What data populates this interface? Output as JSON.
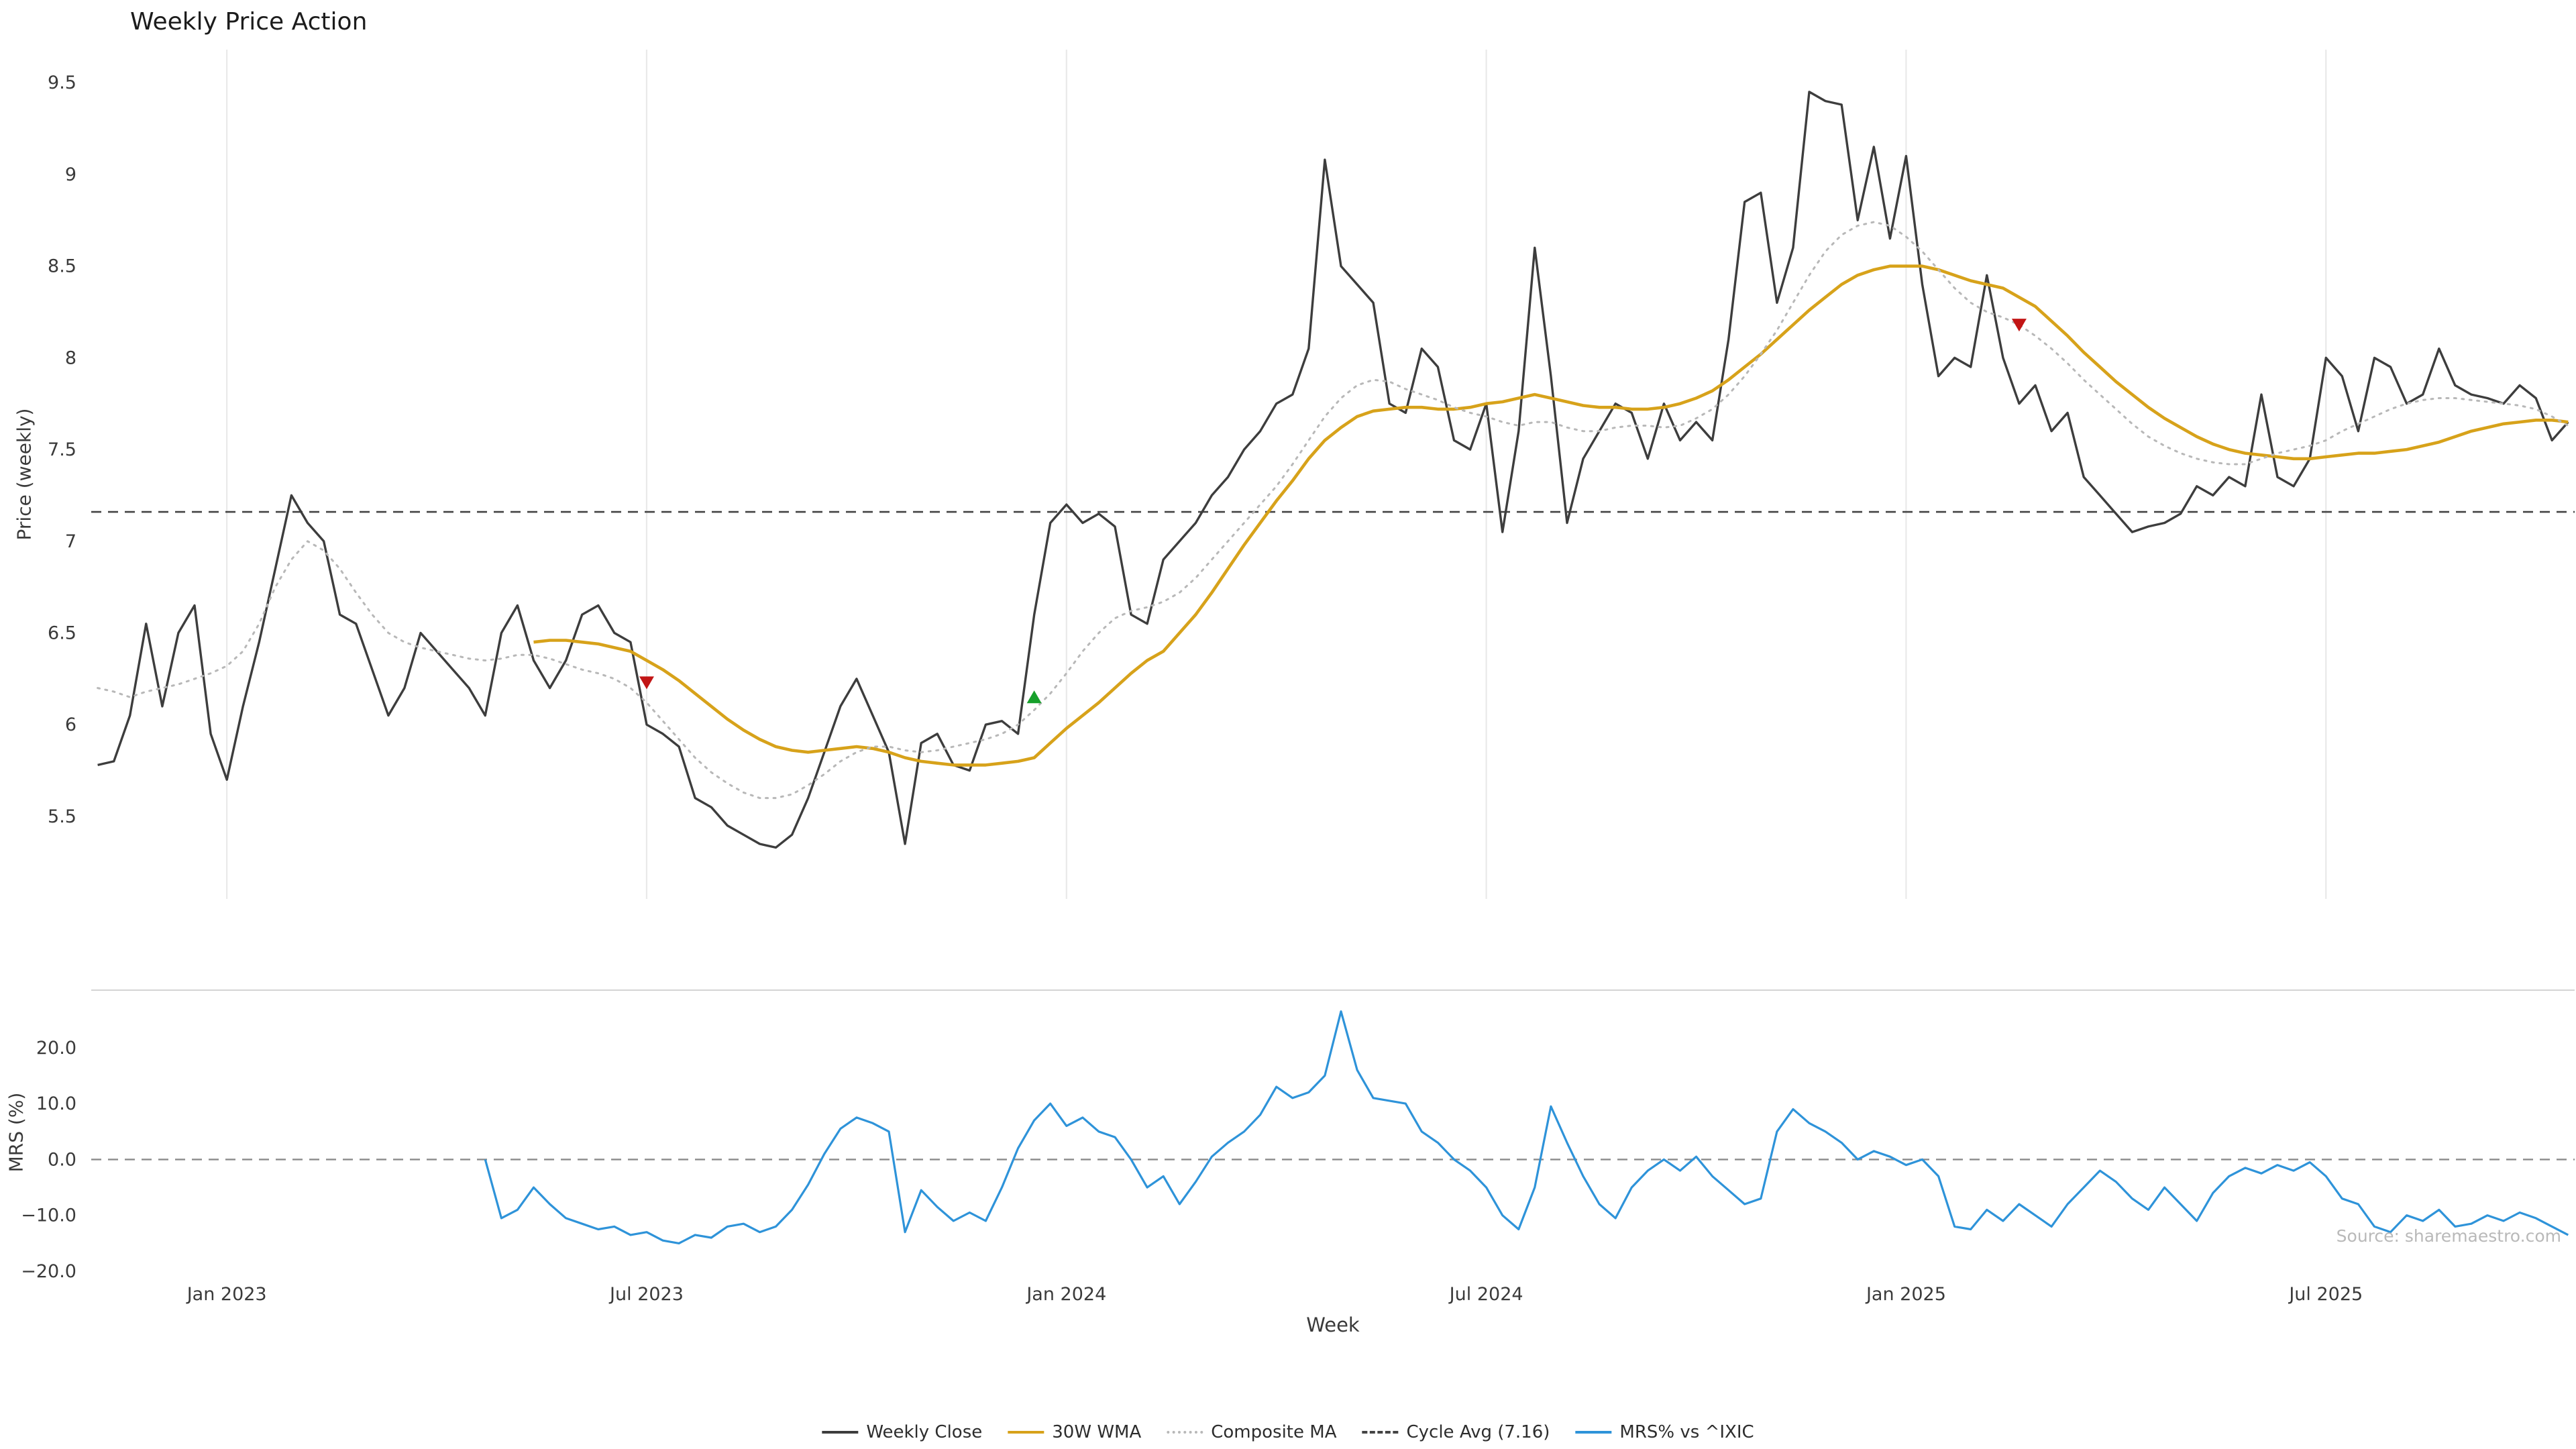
{
  "chart_data": {
    "type": "line",
    "title": "Weekly Price Action",
    "source": "Source: sharemaestro.com",
    "grid": "vertical-only",
    "legend_position": "bottom-center",
    "x_axis": {
      "label": "Week",
      "n_weeks": 154,
      "tick_weeks": [
        8,
        34,
        60,
        86,
        112,
        138
      ],
      "tick_labels": [
        "Jan 2023",
        "Jul 2023",
        "Jan 2024",
        "Jul 2024",
        "Jan 2025",
        "Jul 2025"
      ]
    },
    "panels": [
      {
        "ylabel": "Price (weekly)",
        "ylim": [
          5.05,
          9.68
        ],
        "yticks": [
          9.5,
          9,
          8.5,
          8,
          7.5,
          7,
          6.5,
          6,
          5.5
        ],
        "ytick_labels": [
          "9.5",
          "9",
          "8.5",
          "8",
          "7.5",
          "7",
          "6.5",
          "6",
          "5.5"
        ]
      },
      {
        "ylabel": "MRS (%)",
        "ylim": [
          -20.6,
          30.3
        ],
        "yticks": [
          20,
          10,
          0,
          -10,
          -20
        ],
        "ytick_labels": [
          "20.0",
          "10.0",
          "0.0",
          "−10.0",
          "−20.0"
        ]
      }
    ],
    "cycle_avg_value": 7.16,
    "series": [
      {
        "name": "Weekly Close",
        "panel": 0,
        "color": "#3d3d3d",
        "style": "solid",
        "width": 3.4,
        "values": [
          5.78,
          5.8,
          6.05,
          6.55,
          6.1,
          6.5,
          6.65,
          5.95,
          5.7,
          6.1,
          6.45,
          6.85,
          7.25,
          7.1,
          7.0,
          6.6,
          6.55,
          6.3,
          6.05,
          6.2,
          6.5,
          6.4,
          6.3,
          6.2,
          6.05,
          6.5,
          6.65,
          6.35,
          6.2,
          6.35,
          6.6,
          6.65,
          6.5,
          6.45,
          6.0,
          5.95,
          5.88,
          5.6,
          5.55,
          5.45,
          5.4,
          5.35,
          5.33,
          5.4,
          5.6,
          5.85,
          6.1,
          6.25,
          6.05,
          5.85,
          5.35,
          5.9,
          5.95,
          5.78,
          5.75,
          6.0,
          6.02,
          5.95,
          6.6,
          7.1,
          7.2,
          7.1,
          7.15,
          7.08,
          6.6,
          6.55,
          6.9,
          7.0,
          7.1,
          7.25,
          7.35,
          7.5,
          7.6,
          7.75,
          7.8,
          8.05,
          9.08,
          8.5,
          8.4,
          8.3,
          7.75,
          7.7,
          8.05,
          7.95,
          7.55,
          7.5,
          7.75,
          7.05,
          7.6,
          8.6,
          7.9,
          7.1,
          7.45,
          7.6,
          7.75,
          7.7,
          7.45,
          7.75,
          7.55,
          7.65,
          7.55,
          8.1,
          8.85,
          8.9,
          8.3,
          8.6,
          9.45,
          9.4,
          9.38,
          8.75,
          9.15,
          8.65,
          9.1,
          8.4,
          7.9,
          8.0,
          7.95,
          8.45,
          8.0,
          7.75,
          7.85,
          7.6,
          7.7,
          7.35,
          7.25,
          7.15,
          7.05,
          7.08,
          7.1,
          7.15,
          7.3,
          7.25,
          7.35,
          7.3,
          7.8,
          7.35,
          7.3,
          7.45,
          8.0,
          7.9,
          7.6,
          8.0,
          7.95,
          7.75,
          7.8,
          8.05,
          7.85,
          7.8,
          7.78,
          7.75,
          7.85,
          7.78,
          7.55,
          7.65
        ]
      },
      {
        "name": "30W WMA",
        "panel": 0,
        "color": "#d7a21a",
        "style": "solid",
        "width": 4.6,
        "values": [
          null,
          null,
          null,
          null,
          null,
          null,
          null,
          null,
          null,
          null,
          null,
          null,
          null,
          null,
          null,
          null,
          null,
          null,
          null,
          null,
          null,
          null,
          null,
          null,
          null,
          null,
          null,
          6.45,
          6.46,
          6.46,
          6.45,
          6.44,
          6.42,
          6.4,
          6.35,
          6.3,
          6.24,
          6.17,
          6.1,
          6.03,
          5.97,
          5.92,
          5.88,
          5.86,
          5.85,
          5.86,
          5.87,
          5.88,
          5.87,
          5.85,
          5.82,
          5.8,
          5.79,
          5.78,
          5.78,
          5.78,
          5.79,
          5.8,
          5.82,
          5.9,
          5.98,
          6.05,
          6.12,
          6.2,
          6.28,
          6.35,
          6.4,
          6.5,
          6.6,
          6.72,
          6.85,
          6.98,
          7.1,
          7.22,
          7.33,
          7.45,
          7.55,
          7.62,
          7.68,
          7.71,
          7.72,
          7.73,
          7.73,
          7.72,
          7.72,
          7.73,
          7.75,
          7.76,
          7.78,
          7.8,
          7.78,
          7.76,
          7.74,
          7.73,
          7.73,
          7.72,
          7.72,
          7.73,
          7.75,
          7.78,
          7.82,
          7.88,
          7.95,
          8.02,
          8.1,
          8.18,
          8.26,
          8.33,
          8.4,
          8.45,
          8.48,
          8.5,
          8.5,
          8.5,
          8.48,
          8.45,
          8.42,
          8.4,
          8.38,
          8.33,
          8.28,
          8.2,
          8.12,
          8.03,
          7.95,
          7.87,
          7.8,
          7.73,
          7.67,
          7.62,
          7.57,
          7.53,
          7.5,
          7.48,
          7.47,
          7.46,
          7.45,
          7.45,
          7.46,
          7.47,
          7.48,
          7.48,
          7.49,
          7.5,
          7.52,
          7.54,
          7.57,
          7.6,
          7.62,
          7.64,
          7.65,
          7.66,
          7.66,
          7.65
        ]
      },
      {
        "name": "Composite MA",
        "panel": 0,
        "color": "#b8b8b8",
        "style": "dotted",
        "width": 3.0,
        "values": [
          6.2,
          6.18,
          6.15,
          6.18,
          6.2,
          6.22,
          6.25,
          6.28,
          6.32,
          6.4,
          6.55,
          6.75,
          6.9,
          7.0,
          6.95,
          6.85,
          6.72,
          6.6,
          6.5,
          6.45,
          6.42,
          6.4,
          6.38,
          6.36,
          6.35,
          6.36,
          6.38,
          6.38,
          6.36,
          6.33,
          6.3,
          6.28,
          6.25,
          6.2,
          6.12,
          6.02,
          5.92,
          5.82,
          5.74,
          5.68,
          5.63,
          5.6,
          5.6,
          5.62,
          5.67,
          5.73,
          5.8,
          5.85,
          5.88,
          5.88,
          5.86,
          5.85,
          5.86,
          5.88,
          5.9,
          5.92,
          5.95,
          6.0,
          6.08,
          6.17,
          6.28,
          6.4,
          6.5,
          6.58,
          6.62,
          6.64,
          6.67,
          6.72,
          6.8,
          6.9,
          7.0,
          7.1,
          7.2,
          7.3,
          7.42,
          7.55,
          7.68,
          7.78,
          7.85,
          7.88,
          7.87,
          7.83,
          7.8,
          7.77,
          7.73,
          7.7,
          7.68,
          7.65,
          7.63,
          7.65,
          7.65,
          7.62,
          7.6,
          7.6,
          7.62,
          7.63,
          7.63,
          7.62,
          7.63,
          7.67,
          7.72,
          7.8,
          7.9,
          8.02,
          8.15,
          8.3,
          8.45,
          8.58,
          8.67,
          8.72,
          8.74,
          8.72,
          8.66,
          8.58,
          8.48,
          8.38,
          8.3,
          8.25,
          8.22,
          8.18,
          8.12,
          8.05,
          7.97,
          7.88,
          7.8,
          7.72,
          7.64,
          7.57,
          7.52,
          7.48,
          7.45,
          7.43,
          7.42,
          7.42,
          7.45,
          7.48,
          7.5,
          7.52,
          7.55,
          7.6,
          7.64,
          7.68,
          7.72,
          7.75,
          7.77,
          7.78,
          7.78,
          7.77,
          7.76,
          7.75,
          7.74,
          7.72,
          7.68,
          7.63
        ]
      },
      {
        "name": "Cycle Avg (7.16)",
        "panel": 0,
        "color": "#444444",
        "style": "dashed",
        "width": 2.6,
        "const": 7.16
      },
      {
        "name": "MRS% vs ^IXIC",
        "panel": 1,
        "color": "#2e93d9",
        "style": "solid",
        "width": 3.2,
        "zero_line": true,
        "values": [
          null,
          null,
          null,
          null,
          null,
          null,
          null,
          null,
          null,
          null,
          null,
          null,
          null,
          null,
          null,
          null,
          null,
          null,
          null,
          null,
          null,
          null,
          null,
          null,
          0.0,
          -10.5,
          -9.0,
          -5.0,
          -8.0,
          -10.5,
          -11.5,
          -12.5,
          -12.0,
          -13.5,
          -13.0,
          -14.5,
          -15.0,
          -13.5,
          -14.0,
          -12.0,
          -11.5,
          -13.0,
          -12.0,
          -9.0,
          -4.5,
          1.0,
          5.5,
          7.5,
          6.5,
          5.0,
          -13.0,
          -5.5,
          -8.5,
          -11.0,
          -9.5,
          -11.0,
          -5.0,
          2.0,
          7.0,
          10.0,
          6.0,
          7.5,
          5.0,
          4.0,
          0.0,
          -5.0,
          -3.0,
          -8.0,
          -4.0,
          0.5,
          3.0,
          5.0,
          8.0,
          13.0,
          11.0,
          12.0,
          15.0,
          26.5,
          16.0,
          11.0,
          10.5,
          10.0,
          5.0,
          3.0,
          0.0,
          -2.0,
          -5.0,
          -10.0,
          -12.5,
          -5.0,
          9.5,
          3.0,
          -3.0,
          -8.0,
          -10.5,
          -5.0,
          -2.0,
          0.0,
          -2.0,
          0.5,
          -3.0,
          -5.5,
          -8.0,
          -7.0,
          5.0,
          9.0,
          6.5,
          5.0,
          3.0,
          0.0,
          1.5,
          0.5,
          -1.0,
          0.0,
          -3.0,
          -12.0,
          -12.5,
          -9.0,
          -11.0,
          -8.0,
          -10.0,
          -12.0,
          -8.0,
          -5.0,
          -2.0,
          -4.0,
          -7.0,
          -9.0,
          -5.0,
          -8.0,
          -11.0,
          -6.0,
          -3.0,
          -1.5,
          -2.5,
          -1.0,
          -2.0,
          -0.5,
          -3.0,
          -7.0,
          -8.0,
          -12.0,
          -13.0,
          -10.0,
          -11.0,
          -9.0,
          -12.0,
          -11.5,
          -10.0,
          -11.0,
          -9.5,
          -10.5,
          -12.0,
          -13.5
        ]
      }
    ],
    "signals": {
      "sell_color": "#c21515",
      "buy_color": "#17a02b",
      "sell": [
        {
          "week": 34,
          "price": 6.23
        },
        {
          "week": 119,
          "price": 8.18
        }
      ],
      "buy": [
        {
          "week": 58,
          "price": 6.15
        }
      ]
    },
    "legend": [
      "Weekly Close",
      "30W WMA",
      "Composite MA",
      "Cycle Avg (7.16)",
      "MRS% vs ^IXIC"
    ]
  }
}
